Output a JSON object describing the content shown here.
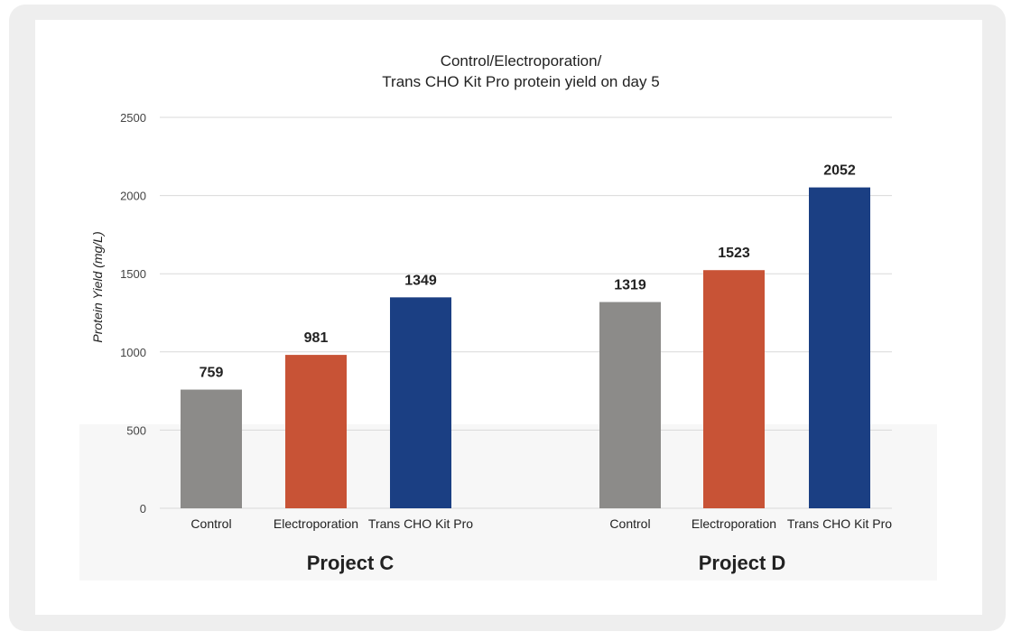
{
  "chart_data": {
    "type": "bar",
    "title_line1": "Control/Electroporation/",
    "title_line2": "Trans CHO Kit Pro protein yield on day 5",
    "ylabel": "Protein Yield (mg/L)",
    "xlabel": "",
    "ylim": [
      0,
      2500
    ],
    "yticks": [
      0,
      500,
      1000,
      1500,
      2000,
      2500
    ],
    "grid": true,
    "groups": [
      {
        "name": "Project C",
        "bars": [
          {
            "label": "Control",
            "value": 759,
            "color": "#8c8b89"
          },
          {
            "label": "Electroporation",
            "value": 981,
            "color": "#c85336"
          },
          {
            "label": "Trans CHO Kit Pro",
            "value": 1349,
            "color": "#1b3f83"
          }
        ]
      },
      {
        "name": "Project D",
        "bars": [
          {
            "label": "Control",
            "value": 1319,
            "color": "#8c8b89"
          },
          {
            "label": "Electroporation",
            "value": 1523,
            "color": "#c85336"
          },
          {
            "label": "Trans CHO Kit Pro",
            "value": 2052,
            "color": "#1b3f83"
          }
        ]
      }
    ]
  }
}
